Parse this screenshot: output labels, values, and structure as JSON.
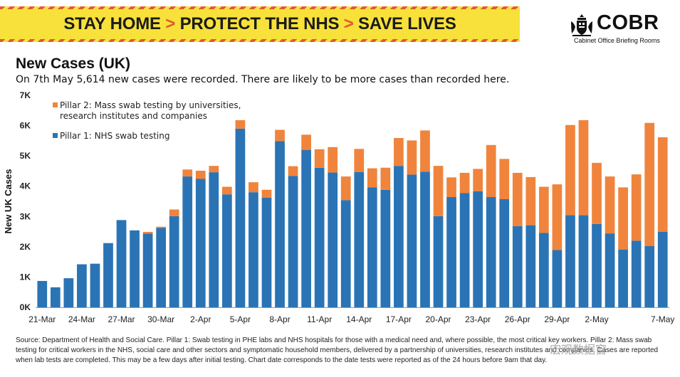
{
  "banner": {
    "part1": "STAY HOME",
    "sep1": " > ",
    "part2": "PROTECT THE NHS",
    "sep2": " > ",
    "part3": "SAVE LIVES"
  },
  "logo": {
    "title": "COBR",
    "subtitle": "Cabinet Office Briefing Rooms"
  },
  "colors": {
    "pillar1": "#2a74b5",
    "pillar2": "#f0843c",
    "banner_bg": "#f7e13a",
    "banner_accent": "#e4572e"
  },
  "chart_data": {
    "type": "bar",
    "stacked": true,
    "title": "New Cases (UK)",
    "subtitle": "On 7th May 5,614 new cases were recorded. There are likely to be more cases than recorded here.",
    "ylabel": "New UK Cases",
    "xlabel": "",
    "ylim": [
      0,
      7000
    ],
    "yticks": [
      0,
      1000,
      2000,
      3000,
      4000,
      5000,
      6000,
      7000
    ],
    "ytick_labels": [
      "0K",
      "1K",
      "2K",
      "3K",
      "4K",
      "5K",
      "6K",
      "7K"
    ],
    "categories": [
      "21-Mar",
      "22-Mar",
      "23-Mar",
      "24-Mar",
      "25-Mar",
      "26-Mar",
      "27-Mar",
      "28-Mar",
      "29-Mar",
      "30-Mar",
      "31-Mar",
      "1-Apr",
      "2-Apr",
      "3-Apr",
      "4-Apr",
      "5-Apr",
      "6-Apr",
      "7-Apr",
      "8-Apr",
      "9-Apr",
      "10-Apr",
      "11-Apr",
      "12-Apr",
      "13-Apr",
      "14-Apr",
      "15-Apr",
      "16-Apr",
      "17-Apr",
      "18-Apr",
      "19-Apr",
      "20-Apr",
      "21-Apr",
      "22-Apr",
      "23-Apr",
      "24-Apr",
      "25-Apr",
      "26-Apr",
      "27-Apr",
      "28-Apr",
      "29-Apr",
      "30-Apr",
      "1-May",
      "2-May",
      "3-May",
      "4-May",
      "5-May",
      "6-May",
      "7-May"
    ],
    "xtick_labels": [
      "21-Mar",
      "24-Mar",
      "27-Mar",
      "30-Mar",
      "2-Apr",
      "5-Apr",
      "8-Apr",
      "11-Apr",
      "14-Apr",
      "17-Apr",
      "20-Apr",
      "23-Apr",
      "26-Apr",
      "29-Apr",
      "2-May",
      "7-May"
    ],
    "series": [
      {
        "name": "Pillar 1: NHS swab testing",
        "color": "#2a74b5",
        "values": [
          870,
          660,
          960,
          1420,
          1440,
          2120,
          2880,
          2540,
          2430,
          2620,
          3010,
          4320,
          4240,
          4460,
          3730,
          5900,
          3800,
          3620,
          5490,
          4340,
          5200,
          4610,
          4450,
          3540,
          4470,
          3960,
          3880,
          4670,
          4380,
          4480,
          3010,
          3640,
          3770,
          3830,
          3640,
          3570,
          2680,
          2710,
          2460,
          1890,
          3040,
          3040,
          2750,
          2440,
          1910,
          2200,
          2020,
          2490
        ]
      },
      {
        "name": "Pillar 2: Mass swab testing by universities, research institutes and companies",
        "color": "#f0843c",
        "values": [
          0,
          0,
          0,
          0,
          0,
          0,
          0,
          0,
          60,
          40,
          220,
          230,
          270,
          210,
          250,
          280,
          330,
          260,
          370,
          320,
          500,
          610,
          840,
          780,
          760,
          630,
          730,
          920,
          1130,
          1360,
          1660,
          650,
          670,
          740,
          1720,
          1330,
          1760,
          1590,
          1520,
          2170,
          2980,
          3140,
          2020,
          1880,
          2050,
          2190,
          4070,
          3124
        ]
      }
    ],
    "legend": [
      {
        "label_lines": [
          "Pillar 2: Mass swab testing by universities,",
          "research institutes and companies"
        ],
        "color": "#f0843c"
      },
      {
        "label_lines": [
          "Pillar 1: NHS swab testing"
        ],
        "color": "#2a74b5"
      }
    ],
    "legend_position": "top-left"
  },
  "footer": {
    "source": "Source: Department of Health and Social Care. Pillar 1: Swab testing in PHE labs and NHS hospitals for those with a medical need and, where possible, the most critical key workers. Pillar 2: Mass swab testing for critical workers in the NHS, social care and other sectors and symptomatic household members, delivered by a partnership of universities, research institutes and companies. Cases are reported when lab tests are completed. This may be a few days after initial testing. Chart date corresponds to the date tests were reported as of the 24 hours before 9am that day."
  },
  "watermark": "宏观数据窗"
}
